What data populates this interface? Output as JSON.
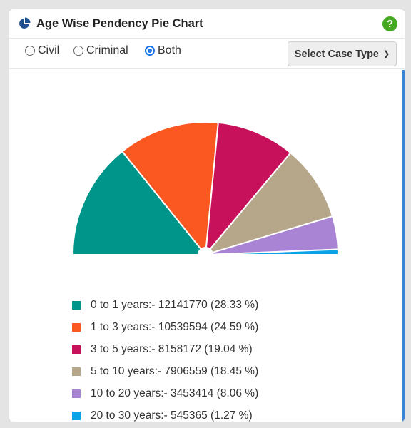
{
  "card": {
    "title": "Age Wise Pendency Pie Chart",
    "help_symbol": "?",
    "accent_color": "#3b83d6"
  },
  "filter": {
    "options": [
      {
        "label": "Civil",
        "checked": false
      },
      {
        "label": "Criminal",
        "checked": false
      },
      {
        "label": "Both",
        "checked": true
      }
    ],
    "case_type_select": {
      "label": "Select Case Type"
    }
  },
  "chart_data": {
    "type": "pie",
    "variant": "semicircle",
    "categories": [
      "0 to 1 years",
      "1 to 3 years",
      "3 to 5 years",
      "5 to 10 years",
      "10 to 20 years",
      "20 to 30 years"
    ],
    "values": [
      12141770,
      10539594,
      8158172,
      7906559,
      3453414,
      545365
    ],
    "percentages": [
      28.33,
      24.59,
      19.04,
      18.45,
      8.06,
      1.27
    ],
    "colors": [
      "#00958a",
      "#fa5721",
      "#c8115b",
      "#b6a78b",
      "#a984d4",
      "#0aa3e8"
    ],
    "legend_labels": [
      "0 to 1 years:- 12141770 (28.33 %)",
      "1 to 3 years:- 10539594 (24.59 %)",
      "3 to 5 years:- 8158172 (19.04 %)",
      "5 to 10 years:- 7906559 (18.45 %)",
      "10 to 20 years:- 3453414 (8.06 %)",
      "20 to 30 years:- 545365 (1.27 %)"
    ],
    "legend_position": "bottom"
  }
}
